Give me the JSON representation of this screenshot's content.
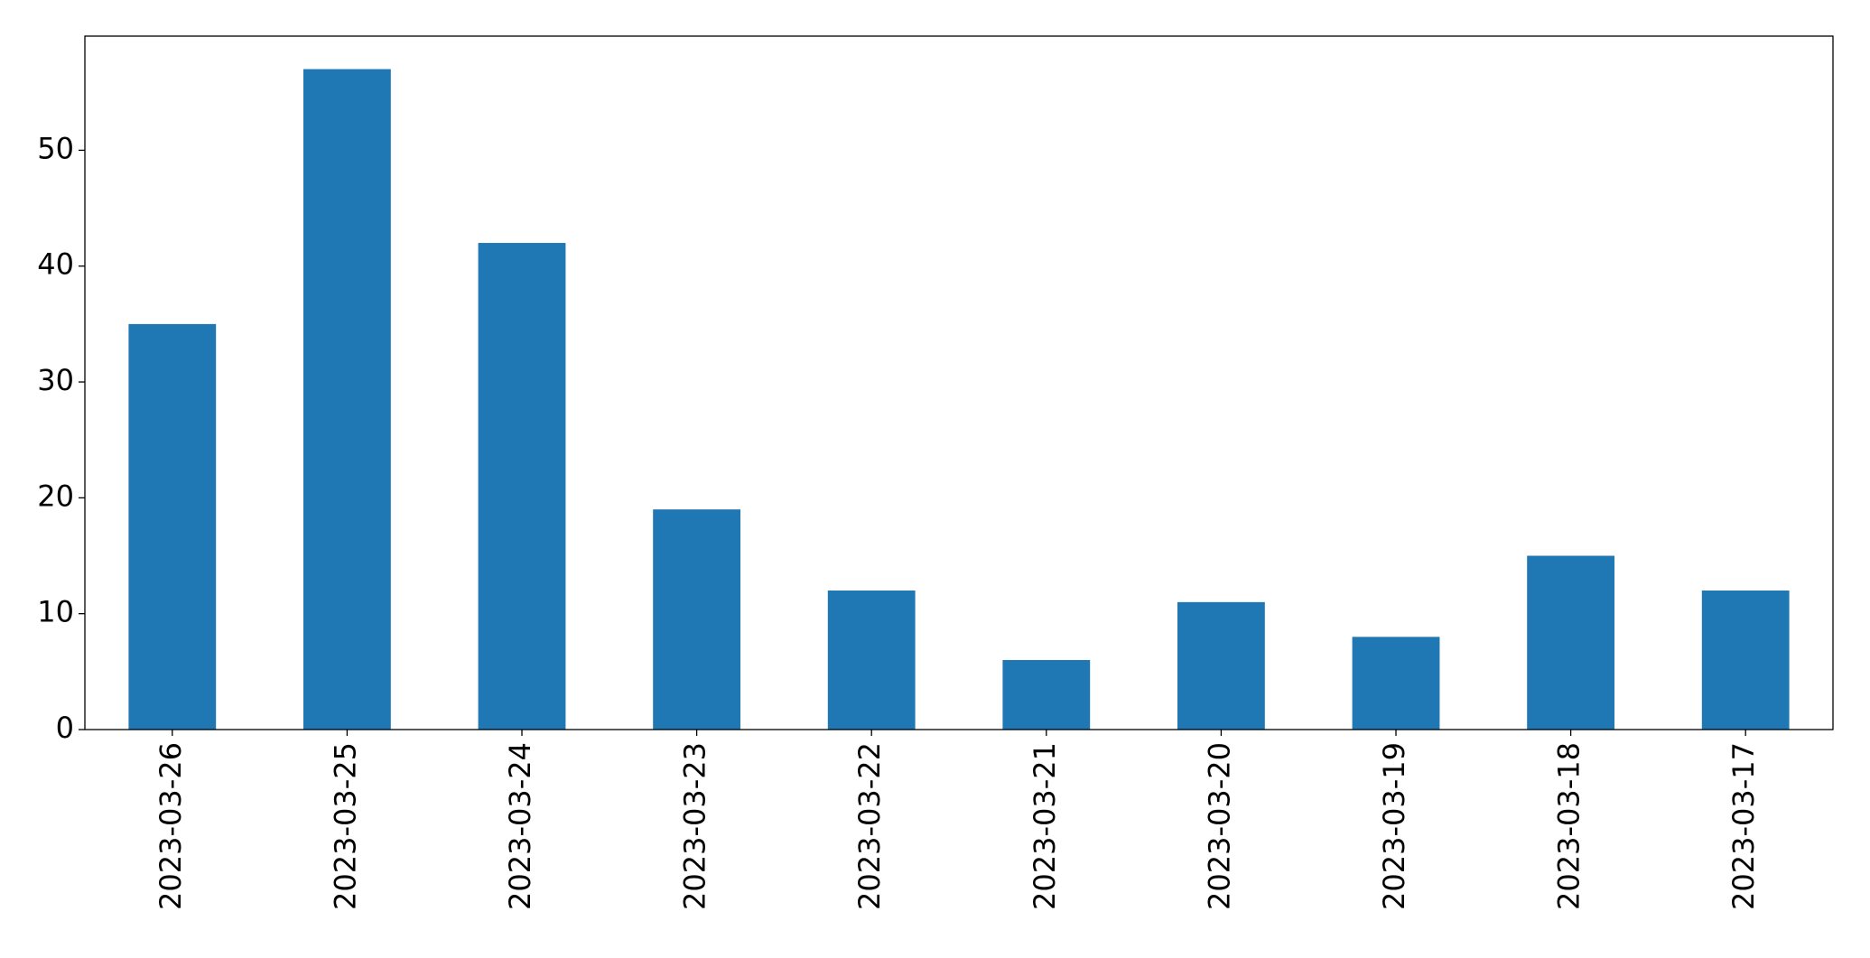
{
  "chart_data": {
    "type": "bar",
    "categories": [
      "2023-03-26",
      "2023-03-25",
      "2023-03-24",
      "2023-03-23",
      "2023-03-22",
      "2023-03-21",
      "2023-03-20",
      "2023-03-19",
      "2023-03-18",
      "2023-03-17"
    ],
    "values": [
      35,
      57,
      42,
      19,
      12,
      6,
      11,
      8,
      15,
      12
    ],
    "color": "#1f77b4",
    "ylim": [
      0,
      59.85
    ],
    "yticks": [
      0,
      10,
      20,
      30,
      40,
      50
    ],
    "grid": false
  }
}
